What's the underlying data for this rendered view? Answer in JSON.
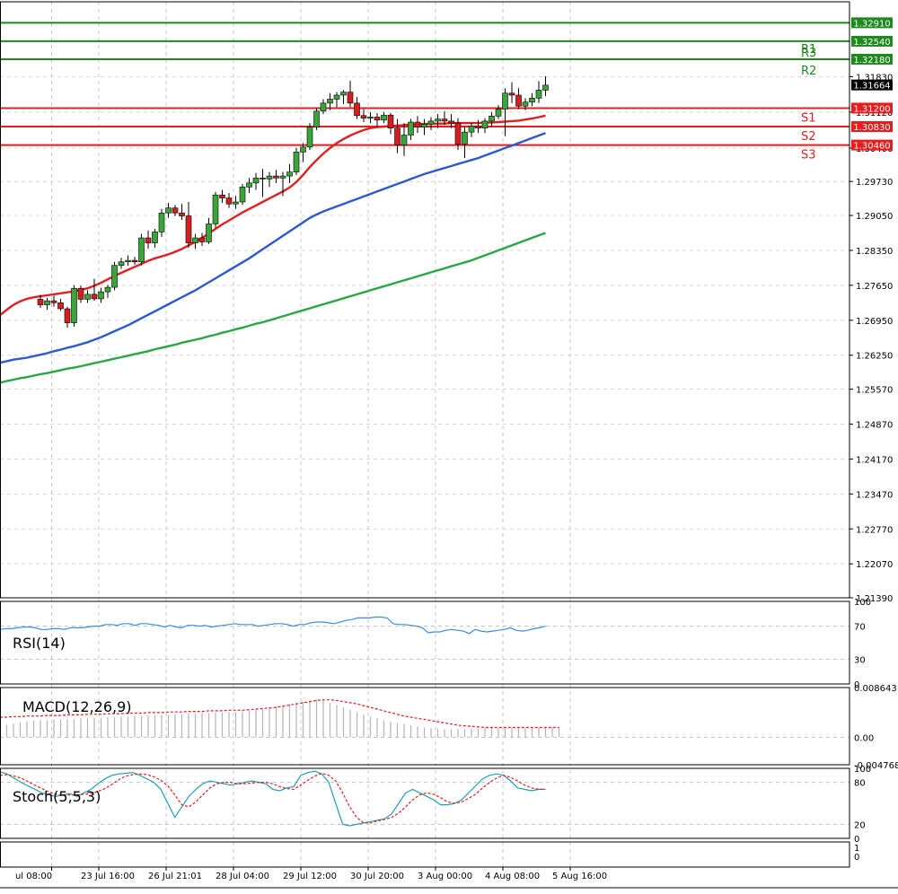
{
  "chart_data": {
    "type": "candlestick",
    "price_axis": {
      "ticks": [
        "1.31830",
        "1.31120",
        "1.30400",
        "1.29730",
        "1.29050",
        "1.28350",
        "1.27650",
        "1.26950",
        "1.26250",
        "1.25570",
        "1.24870",
        "1.24170",
        "1.23470",
        "1.22770",
        "1.22070",
        "1.21390"
      ],
      "ylim": [
        1.2139,
        1.3333
      ],
      "current_price": "1.31664"
    },
    "levels": [
      {
        "label": "R3",
        "value": "1.32910",
        "kind": "resistance"
      },
      {
        "label": "R2",
        "value": "1.32540",
        "kind": "resistance"
      },
      {
        "label": "R1",
        "value": "1.32180",
        "kind": "resistance"
      },
      {
        "label": "S1",
        "value": "1.31200",
        "kind": "support"
      },
      {
        "label": "S2",
        "value": "1.30830",
        "kind": "support"
      },
      {
        "label": "S3",
        "value": "1.30460",
        "kind": "support"
      }
    ],
    "time_labels": [
      {
        "label": "ul 08:00",
        "index": -1
      },
      {
        "label": "23 Jul 16:00",
        "index": 6
      },
      {
        "label": "26 Jul 21:01",
        "index": 16
      },
      {
        "label": "28 Jul 04:00",
        "index": 26
      },
      {
        "label": "29 Jul 12:00",
        "index": 36
      },
      {
        "label": "30 Jul 20:00",
        "index": 46
      },
      {
        "label": "3 Aug 00:00",
        "index": 56
      },
      {
        "label": "4 Aug 08:00",
        "index": 66
      },
      {
        "label": "5 Aug 16:00",
        "index": 76
      }
    ],
    "candles": [
      [
        1.2737,
        1.2746,
        1.272,
        1.2726
      ],
      [
        1.2726,
        1.274,
        1.2716,
        1.2734
      ],
      [
        1.2734,
        1.2744,
        1.2722,
        1.273
      ],
      [
        1.273,
        1.2738,
        1.2714,
        1.2718
      ],
      [
        1.2718,
        1.2722,
        1.268,
        1.269
      ],
      [
        1.269,
        1.2765,
        1.2682,
        1.2759
      ],
      [
        1.2759,
        1.2764,
        1.273,
        1.2737
      ],
      [
        1.2737,
        1.2755,
        1.273,
        1.2747
      ],
      [
        1.2747,
        1.2778,
        1.2734,
        1.2738
      ],
      [
        1.2738,
        1.276,
        1.273,
        1.2752
      ],
      [
        1.2752,
        1.2766,
        1.274,
        1.2761
      ],
      [
        1.2761,
        1.2812,
        1.2755,
        1.2805
      ],
      [
        1.2805,
        1.282,
        1.2798,
        1.2812
      ],
      [
        1.2812,
        1.2825,
        1.2804,
        1.2815
      ],
      [
        1.2815,
        1.2822,
        1.2806,
        1.2812
      ],
      [
        1.2812,
        1.2868,
        1.2805,
        1.286
      ],
      [
        1.286,
        1.2875,
        1.2838,
        1.285
      ],
      [
        1.285,
        1.2878,
        1.284,
        1.2872
      ],
      [
        1.2872,
        1.2918,
        1.2862,
        1.291
      ],
      [
        1.291,
        1.293,
        1.29,
        1.292
      ],
      [
        1.292,
        1.2926,
        1.2904,
        1.291
      ],
      [
        1.291,
        1.2928,
        1.2896,
        1.2904
      ],
      [
        1.2904,
        1.2932,
        1.284,
        1.285
      ],
      [
        1.285,
        1.2868,
        1.2838,
        1.286
      ],
      [
        1.286,
        1.287,
        1.2844,
        1.2852
      ],
      [
        1.2852,
        1.29,
        1.2848,
        1.2888
      ],
      [
        1.2888,
        1.2952,
        1.288,
        1.2946
      ],
      [
        1.2946,
        1.2956,
        1.293,
        1.294
      ],
      [
        1.294,
        1.295,
        1.292,
        1.2928
      ],
      [
        1.2928,
        1.2944,
        1.2918,
        1.2932
      ],
      [
        1.2932,
        1.2968,
        1.2926,
        1.2962
      ],
      [
        1.2962,
        1.298,
        1.295,
        1.297
      ],
      [
        1.297,
        1.299,
        1.2956,
        1.298
      ],
      [
        1.298,
        1.2998,
        1.2942,
        1.2978
      ],
      [
        1.2978,
        1.2992,
        1.2962,
        1.2984
      ],
      [
        1.2984,
        1.2996,
        1.297,
        1.298
      ],
      [
        1.298,
        1.2992,
        1.2944,
        1.2984
      ],
      [
        1.2984,
        1.3008,
        1.297,
        1.2992
      ],
      [
        1.2992,
        1.304,
        1.2986,
        1.3032
      ],
      [
        1.3032,
        1.305,
        1.3012,
        1.3042
      ],
      [
        1.3042,
        1.309,
        1.3036,
        1.3082
      ],
      [
        1.3082,
        1.312,
        1.3076,
        1.3114
      ],
      [
        1.3114,
        1.3138,
        1.3108,
        1.313
      ],
      [
        1.313,
        1.315,
        1.3116,
        1.3138
      ],
      [
        1.3138,
        1.3152,
        1.3122,
        1.3146
      ],
      [
        1.3146,
        1.3156,
        1.3128,
        1.3152
      ],
      [
        1.3152,
        1.3175,
        1.3122,
        1.313
      ],
      [
        1.313,
        1.3142,
        1.3098,
        1.3105
      ],
      [
        1.3105,
        1.3118,
        1.3092,
        1.31
      ],
      [
        1.31,
        1.3112,
        1.309,
        1.3102
      ],
      [
        1.3102,
        1.311,
        1.3082,
        1.3096
      ],
      [
        1.3096,
        1.3112,
        1.309,
        1.3106
      ],
      [
        1.3106,
        1.311,
        1.3068,
        1.308
      ],
      [
        1.308,
        1.3098,
        1.303,
        1.3046
      ],
      [
        1.3046,
        1.309,
        1.3024,
        1.3066
      ],
      [
        1.3066,
        1.3098,
        1.3056,
        1.3092
      ],
      [
        1.3092,
        1.3104,
        1.307,
        1.3082
      ],
      [
        1.3082,
        1.3098,
        1.3066,
        1.3088
      ],
      [
        1.3088,
        1.3102,
        1.3076,
        1.3094
      ],
      [
        1.3094,
        1.3108,
        1.308,
        1.3098
      ],
      [
        1.3098,
        1.3114,
        1.3086,
        1.3094
      ],
      [
        1.3094,
        1.3108,
        1.308,
        1.309
      ],
      [
        1.309,
        1.31,
        1.3036,
        1.3048
      ],
      [
        1.3048,
        1.3082,
        1.302,
        1.3072
      ],
      [
        1.3072,
        1.309,
        1.3062,
        1.3084
      ],
      [
        1.3084,
        1.3096,
        1.307,
        1.308
      ],
      [
        1.308,
        1.31,
        1.307,
        1.3094
      ],
      [
        1.3094,
        1.3112,
        1.3082,
        1.3104
      ],
      [
        1.3104,
        1.3126,
        1.3098,
        1.3118
      ],
      [
        1.3118,
        1.316,
        1.3064,
        1.315
      ],
      [
        1.315,
        1.3172,
        1.313,
        1.3146
      ],
      [
        1.3146,
        1.316,
        1.3118,
        1.3124
      ],
      [
        1.3124,
        1.314,
        1.3116,
        1.3132
      ],
      [
        1.3132,
        1.315,
        1.3124,
        1.314
      ],
      [
        1.314,
        1.3174,
        1.313,
        1.3156
      ],
      [
        1.3156,
        1.3184,
        1.3144,
        1.3166
      ]
    ],
    "moving_averages": [
      {
        "color": "#e41e1e",
        "start_index": -6,
        "values": [
          1.2705,
          1.2716,
          1.2726,
          1.2733,
          1.2738,
          1.2741,
          1.2743,
          1.2745,
          1.2747,
          1.2749,
          1.2751,
          1.2753,
          1.2756,
          1.2759,
          1.2764,
          1.277,
          1.2777,
          1.2784,
          1.279,
          1.2796,
          1.2802,
          1.2808,
          1.2814,
          1.2819,
          1.2823,
          1.2827,
          1.2832,
          1.2838,
          1.2845,
          1.2852,
          1.286,
          1.2869,
          1.2878,
          1.2887,
          1.2895,
          1.2903,
          1.2911,
          1.2918,
          1.2925,
          1.2932,
          1.2939,
          1.2946,
          1.2953,
          1.2961,
          1.2972,
          1.2986,
          1.3002,
          1.3016,
          1.3029,
          1.304,
          1.305,
          1.3058,
          1.3065,
          1.3071,
          1.3076,
          1.308,
          1.3082,
          1.3083,
          1.3084,
          1.3085,
          1.3086,
          1.3087,
          1.3088,
          1.3088,
          1.3089,
          1.3089,
          1.3089,
          1.309,
          1.309,
          1.309,
          1.309,
          1.309,
          1.3091,
          1.3091,
          1.3092,
          1.3093,
          1.3094,
          1.3095,
          1.3097,
          1.3099,
          1.3102,
          1.3105
        ]
      },
      {
        "color": "#2c58d0",
        "start_index": -6,
        "values": [
          1.261,
          1.2613,
          1.2616,
          1.2618,
          1.262,
          1.2623,
          1.2626,
          1.2629,
          1.2633,
          1.2636,
          1.264,
          1.2643,
          1.2647,
          1.2651,
          1.2656,
          1.2661,
          1.2667,
          1.2673,
          1.2679,
          1.2685,
          1.2692,
          1.2699,
          1.2706,
          1.2713,
          1.272,
          1.2727,
          1.2734,
          1.2741,
          1.2748,
          1.2755,
          1.2763,
          1.2771,
          1.2779,
          1.2787,
          1.2795,
          1.2803,
          1.2811,
          1.2819,
          1.2828,
          1.2837,
          1.2846,
          1.2855,
          1.2864,
          1.2873,
          1.2882,
          1.2891,
          1.29,
          1.2907,
          1.2913,
          1.2918,
          1.2923,
          1.2928,
          1.2933,
          1.2938,
          1.2943,
          1.2948,
          1.2953,
          1.2958,
          1.2963,
          1.2968,
          1.2973,
          1.2978,
          1.2983,
          1.2988,
          1.2992,
          1.2996,
          1.3,
          1.3004,
          1.3008,
          1.3012,
          1.3016,
          1.302,
          1.3025,
          1.303,
          1.3035,
          1.304,
          1.3045,
          1.305,
          1.3055,
          1.306,
          1.3065,
          1.307
        ]
      },
      {
        "color": "#28a745",
        "start_index": -6,
        "values": [
          1.257,
          1.2573,
          1.2576,
          1.2579,
          1.2581,
          1.2584,
          1.2587,
          1.2589,
          1.2592,
          1.2595,
          1.2598,
          1.26,
          1.2603,
          1.2606,
          1.2609,
          1.2612,
          1.2615,
          1.2618,
          1.2621,
          1.2624,
          1.2627,
          1.263,
          1.2633,
          1.2637,
          1.264,
          1.2643,
          1.2646,
          1.265,
          1.2653,
          1.2656,
          1.2659,
          1.2663,
          1.2666,
          1.267,
          1.2673,
          1.2677,
          1.268,
          1.2684,
          1.2688,
          1.2691,
          1.2695,
          1.2699,
          1.2703,
          1.2707,
          1.2711,
          1.2715,
          1.2719,
          1.2723,
          1.2727,
          1.2731,
          1.2735,
          1.2739,
          1.2743,
          1.2747,
          1.2751,
          1.2755,
          1.2759,
          1.2763,
          1.2767,
          1.2771,
          1.2775,
          1.2779,
          1.2783,
          1.2787,
          1.2791,
          1.2795,
          1.2799,
          1.2803,
          1.2807,
          1.2811,
          1.2815,
          1.282,
          1.2825,
          1.283,
          1.2835,
          1.284,
          1.2845,
          1.285,
          1.2855,
          1.286,
          1.2865,
          1.287
        ]
      }
    ],
    "rsi": {
      "label": "RSI(14)",
      "ticks": [
        "100",
        "70",
        "30",
        "0"
      ],
      "ylim": [
        0,
        100
      ],
      "start_index": -6,
      "values": [
        66,
        67,
        67,
        68,
        69,
        69,
        68,
        66,
        66,
        67,
        67,
        66,
        68,
        68,
        68,
        69,
        70,
        70,
        72,
        72,
        71,
        73,
        73,
        71,
        73,
        73,
        72,
        71,
        69,
        71,
        69,
        68,
        71,
        71,
        70,
        71,
        69,
        70,
        71,
        72,
        73,
        72,
        72,
        72,
        70,
        71,
        72,
        73,
        73,
        72,
        70,
        72,
        72,
        74,
        75,
        75,
        74,
        73,
        75,
        77,
        78,
        80,
        80,
        80,
        81,
        81,
        80,
        73,
        72,
        72,
        71,
        70,
        68,
        62,
        63,
        63,
        65,
        66,
        65,
        64,
        61,
        66,
        64,
        63,
        64,
        65,
        66,
        68,
        65,
        64,
        65,
        67,
        68,
        70
      ]
    },
    "macd": {
      "label": "MACD(12,26,9)",
      "ticks": [
        "0.008643",
        "0.00",
        "-0.004768"
      ],
      "ylim": [
        -0.004768,
        0.008643
      ],
      "start_index": -6,
      "histogram": [
        0.002,
        0.0022,
        0.0024,
        0.0026,
        0.0028,
        0.0029,
        0.003,
        0.003,
        0.0031,
        0.0031,
        0.0032,
        0.0032,
        0.0033,
        0.0033,
        0.0034,
        0.0034,
        0.0035,
        0.0035,
        0.0036,
        0.0036,
        0.0037,
        0.0037,
        0.0038,
        0.0038,
        0.0039,
        0.0039,
        0.004,
        0.004,
        0.0041,
        0.0041,
        0.0042,
        0.0042,
        0.0043,
        0.0043,
        0.0044,
        0.0044,
        0.0045,
        0.0046,
        0.0048,
        0.005,
        0.0052,
        0.0054,
        0.0056,
        0.0058,
        0.006,
        0.0062,
        0.0064,
        0.0066,
        0.0064,
        0.006,
        0.0056,
        0.0052,
        0.0048,
        0.0044,
        0.004,
        0.0036,
        0.0033,
        0.003,
        0.0027,
        0.0025,
        0.0023,
        0.0021,
        0.0019,
        0.0017,
        0.0016,
        0.0015,
        0.0014,
        0.0014,
        0.0014,
        0.0014,
        0.0015,
        0.0015,
        0.0016,
        0.0016,
        0.0016,
        0.0016,
        0.0016,
        0.0016,
        0.0016,
        0.0016,
        0.0017,
        0.0017,
        0.0017,
        0.0017
      ],
      "signal": [
        0.0035,
        0.0035,
        0.0036,
        0.0036,
        0.0037,
        0.0037,
        0.0037,
        0.0038,
        0.0038,
        0.0038,
        0.0039,
        0.0039,
        0.0039,
        0.004,
        0.004,
        0.004,
        0.0041,
        0.0041,
        0.0041,
        0.0042,
        0.0042,
        0.0042,
        0.0043,
        0.0043,
        0.0043,
        0.0044,
        0.0044,
        0.0044,
        0.0045,
        0.0045,
        0.0045,
        0.0046,
        0.0046,
        0.0046,
        0.0047,
        0.0047,
        0.0047,
        0.0048,
        0.0049,
        0.005,
        0.0051,
        0.0052,
        0.0054,
        0.0056,
        0.0058,
        0.006,
        0.0062,
        0.0064,
        0.0065,
        0.0065,
        0.0064,
        0.0062,
        0.006,
        0.0058,
        0.0055,
        0.0052,
        0.0049,
        0.0046,
        0.0043,
        0.004,
        0.0037,
        0.0035,
        0.0033,
        0.0031,
        0.0029,
        0.0027,
        0.0025,
        0.0023,
        0.0021,
        0.002,
        0.0019,
        0.0018,
        0.0017,
        0.0017,
        0.0017,
        0.0017,
        0.0017,
        0.0017,
        0.0017,
        0.0017,
        0.0017,
        0.0017,
        0.0017,
        0.0017
      ]
    },
    "stochastic": {
      "label": "Stoch(5,5,3)",
      "ticks": [
        "100",
        "80",
        "20",
        "0"
      ],
      "ylim": [
        0,
        100
      ],
      "start_index": -6,
      "main": [
        95,
        92,
        86,
        80,
        75,
        70,
        65,
        62,
        60,
        62,
        64,
        60,
        65,
        70,
        78,
        85,
        90,
        92,
        93,
        94,
        90,
        85,
        80,
        70,
        50,
        30,
        45,
        60,
        70,
        78,
        82,
        80,
        78,
        76,
        78,
        80,
        82,
        80,
        78,
        70,
        68,
        72,
        74,
        90,
        94,
        96,
        92,
        80,
        50,
        20,
        18,
        20,
        22,
        24,
        26,
        28,
        35,
        50,
        65,
        70,
        65,
        60,
        55,
        48,
        48,
        50,
        55,
        65,
        75,
        85,
        90,
        92,
        90,
        82,
        72,
        70,
        68,
        70,
        70
      ],
      "signal": [
        90,
        91,
        89,
        86,
        81,
        76,
        71,
        66,
        63,
        62,
        62,
        62,
        63,
        64,
        67,
        71,
        77,
        84,
        89,
        91,
        92,
        91,
        88,
        83,
        75,
        62,
        48,
        45,
        52,
        62,
        72,
        78,
        80,
        80,
        78,
        78,
        79,
        80,
        80,
        78,
        74,
        71,
        70,
        76,
        83,
        89,
        93,
        90,
        82,
        65,
        45,
        30,
        22,
        22,
        25,
        27,
        30,
        36,
        45,
        55,
        62,
        65,
        63,
        58,
        52,
        50,
        52,
        57,
        63,
        72,
        80,
        86,
        90,
        87,
        82,
        76,
        72,
        70,
        70
      ]
    }
  }
}
